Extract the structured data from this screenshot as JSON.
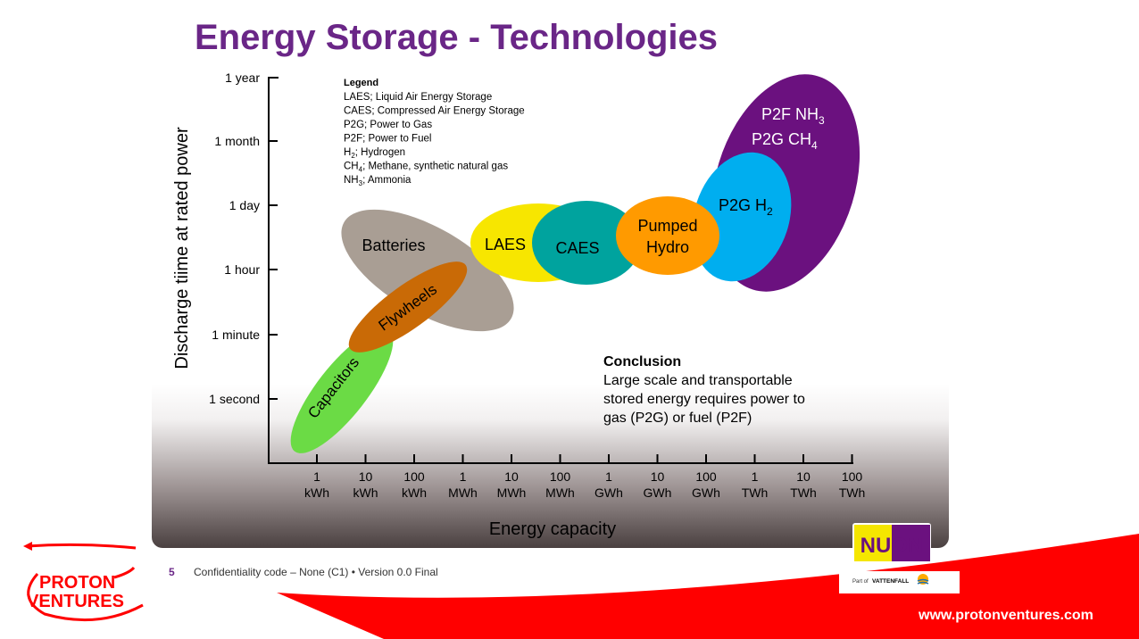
{
  "title": "Energy Storage - Technologies",
  "y_axis": {
    "label": "Discharge tiime at rated power",
    "ticks": [
      "1 year",
      "1 month",
      "1 day",
      "1 hour",
      "1 minute",
      "1 second"
    ]
  },
  "x_axis": {
    "label": "Energy capacity",
    "ticks": [
      {
        "v": "1",
        "u": "kWh"
      },
      {
        "v": "10",
        "u": "kWh"
      },
      {
        "v": "100",
        "u": "kWh"
      },
      {
        "v": "1",
        "u": "MWh"
      },
      {
        "v": "10",
        "u": "MWh"
      },
      {
        "v": "100",
        "u": "MWh"
      },
      {
        "v": "1",
        "u": "GWh"
      },
      {
        "v": "10",
        "u": "GWh"
      },
      {
        "v": "100",
        "u": "GWh"
      },
      {
        "v": "1",
        "u": "TWh"
      },
      {
        "v": "10",
        "u": "TWh"
      },
      {
        "v": "100",
        "u": "TWh"
      }
    ]
  },
  "legend": {
    "heading": "Legend",
    "items": [
      {
        "abbr": "LAES",
        "sub": "",
        "desc": "; Liquid Air Energy Storage"
      },
      {
        "abbr": "CAES",
        "sub": "",
        "desc": "; Compressed Air Energy Storage"
      },
      {
        "abbr": "P2G",
        "sub": "",
        "desc": "; Power to Gas"
      },
      {
        "abbr": "P2F",
        "sub": "",
        "desc": "; Power to Fuel"
      },
      {
        "abbr": "H",
        "sub": "2",
        "desc": "; Hydrogen"
      },
      {
        "abbr": "CH",
        "sub": "4",
        "desc": "; Methane, synthetic natural gas"
      },
      {
        "abbr": "NH",
        "sub": "3",
        "desc": "; Ammonia"
      }
    ]
  },
  "technologies": {
    "batteries": {
      "label": "Batteries",
      "color": "#a99e94"
    },
    "flywheels": {
      "label": "Flywheels",
      "color": "#c96a06"
    },
    "capacitors": {
      "label": "Capacitors",
      "color": "#6bdb45"
    },
    "laes": {
      "label": "LAES",
      "color": "#f7e600"
    },
    "caes": {
      "label": "CAES",
      "color": "#00a39e"
    },
    "pumped_hydro": {
      "line1": "Pumped",
      "line2": "Hydro",
      "color": "#ff9a00"
    },
    "p2f": {
      "line1a": "P2F NH",
      "line1sub": "3",
      "line2a": "P2G CH",
      "line2sub": "4",
      "color": "#6b117f"
    },
    "p2g_h2": {
      "label": "P2G H",
      "sub": "2",
      "color": "#00aeef"
    }
  },
  "conclusion": {
    "heading": "Conclusion",
    "lines": [
      "Large scale and transportable",
      "stored energy requires power to",
      "gas (P2G) or fuel (P2F)"
    ]
  },
  "footer": {
    "page": "5",
    "text": "Confidentiality code – None (C1) • Version 0.0 Final",
    "url": "www.protonventures.com"
  },
  "logos": {
    "proton": [
      "PROTON",
      "VENTURES"
    ],
    "nuon": "NUON",
    "vattenfall_prefix": "Part of",
    "vattenfall": "VATTENFALL"
  }
}
